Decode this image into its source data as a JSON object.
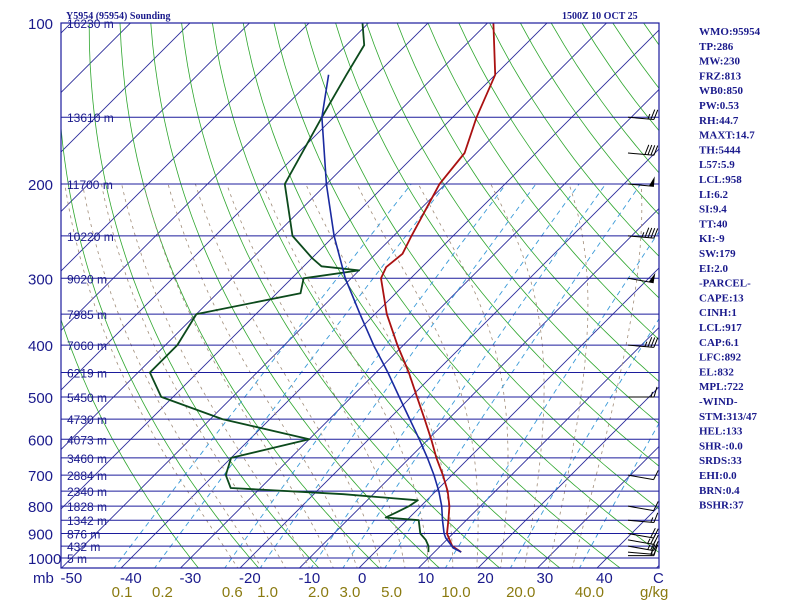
{
  "header": {
    "station": "Y5954 (95954) Sounding",
    "time": "1500Z 10 OCT 25"
  },
  "indices": [
    "WMO:95954",
    "TP:286",
    "MW:230",
    "FRZ:813",
    "WB0:850",
    "PW:0.53",
    "RH:44.7",
    "MAXT:14.7",
    "TH:5444",
    "L57:5.9",
    "LCL:958",
    "LI:6.2",
    "SI:9.4",
    "TT:40",
    "KI:-9",
    "SW:179",
    "EI:2.0",
    "-PARCEL-",
    "CAPE:13",
    "CINH:1",
    "LCL:917",
    "CAP:6.1",
    "LFC:892",
    "EL:832",
    "MPL:722",
    "-WIND-",
    "STM:313/47",
    "HEL:133",
    "SHR-:0.0",
    "SRDS:33",
    "EHI:0.0",
    "BRN:0.4",
    "BSHR:37"
  ],
  "colors": {
    "isobar": "#1c1c9c",
    "isotherm": "#2a2a9a",
    "dry_adiabat": "#2ea62e",
    "moist_adiabat": "#a08c78",
    "mixing_ratio": "#3a9ad8",
    "temperature": "#aa1111",
    "dewpoint": "#0c4a1c",
    "parcel": "#1a2aa0",
    "wind": "#000000"
  },
  "chart_data": {
    "type": "skew-t",
    "pressure_axis": {
      "range_hpa": [
        1000,
        100
      ],
      "ticks": [
        {
          "p": 100,
          "label": "100"
        },
        {
          "p": 200,
          "label": "200"
        },
        {
          "p": 300,
          "label": "300"
        },
        {
          "p": 400,
          "label": "400"
        },
        {
          "p": 500,
          "label": "500"
        },
        {
          "p": 600,
          "label": "600"
        },
        {
          "p": 700,
          "label": "700"
        },
        {
          "p": 800,
          "label": "800"
        },
        {
          "p": 900,
          "label": "900"
        },
        {
          "p": 1000,
          "label": "1000"
        }
      ],
      "unit": "mb"
    },
    "temperature_axis": {
      "unit": "C",
      "ticks": [
        {
          "t": -50,
          "label": "-50"
        },
        {
          "t": -40,
          "label": "-40"
        },
        {
          "t": -30,
          "label": "-30"
        },
        {
          "t": -20,
          "label": "-20"
        },
        {
          "t": -10,
          "label": "-10"
        },
        {
          "t": 0,
          "label": "0"
        },
        {
          "t": 10,
          "label": "10"
        },
        {
          "t": 20,
          "label": "20"
        },
        {
          "t": 30,
          "label": "30"
        },
        {
          "t": 40,
          "label": "40"
        }
      ]
    },
    "mixing_ratio_axis": {
      "unit": "g/kg",
      "ticks": [
        {
          "w": 0.1,
          "label": "0.1"
        },
        {
          "w": 0.2,
          "label": "0.2"
        },
        {
          "w": 0.6,
          "label": "0.6"
        },
        {
          "w": 1.0,
          "label": "1.0"
        },
        {
          "w": 2.0,
          "label": "2.0"
        },
        {
          "w": 3.0,
          "label": "3.0"
        },
        {
          "w": 5.0,
          "label": "5.0"
        },
        {
          "w": 10.0,
          "label": "10.0"
        },
        {
          "w": 20.0,
          "label": "20.0"
        },
        {
          "w": 40.0,
          "label": "40.0"
        }
      ]
    },
    "height_levels": [
      {
        "p": 100,
        "label": "16230 m"
      },
      {
        "p": 150,
        "label": "13610 m"
      },
      {
        "p": 200,
        "label": "11700 m"
      },
      {
        "p": 250,
        "label": "10220 m"
      },
      {
        "p": 300,
        "label": "9020 m"
      },
      {
        "p": 350,
        "label": "7985 m"
      },
      {
        "p": 400,
        "label": "7060 m"
      },
      {
        "p": 450,
        "label": "6219 m"
      },
      {
        "p": 500,
        "label": "5450 m"
      },
      {
        "p": 550,
        "label": "4730 m"
      },
      {
        "p": 600,
        "label": "4073 m"
      },
      {
        "p": 650,
        "label": "3460 m"
      },
      {
        "p": 700,
        "label": "2884 m"
      },
      {
        "p": 750,
        "label": "2340 m"
      },
      {
        "p": 800,
        "label": "1828 m"
      },
      {
        "p": 850,
        "label": "1342 m"
      },
      {
        "p": 900,
        "label": "876 m"
      },
      {
        "p": 950,
        "label": "432 m"
      },
      {
        "p": 1000,
        "label": "5 m"
      }
    ],
    "series": [
      {
        "name": "temperature",
        "points": [
          {
            "p": 975,
            "t": 14.5
          },
          {
            "p": 950,
            "t": 12.0
          },
          {
            "p": 925,
            "t": 10.5
          },
          {
            "p": 900,
            "t": 9.0
          },
          {
            "p": 850,
            "t": 7.0
          },
          {
            "p": 800,
            "t": 4.8
          },
          {
            "p": 750,
            "t": 2.0
          },
          {
            "p": 700,
            "t": -1.5
          },
          {
            "p": 650,
            "t": -5.5
          },
          {
            "p": 600,
            "t": -9.5
          },
          {
            "p": 550,
            "t": -14.0
          },
          {
            "p": 500,
            "t": -19.0
          },
          {
            "p": 450,
            "t": -24.5
          },
          {
            "p": 400,
            "t": -31.0
          },
          {
            "p": 350,
            "t": -38.0
          },
          {
            "p": 300,
            "t": -45.0
          },
          {
            "p": 286,
            "t": -46.0
          },
          {
            "p": 270,
            "t": -45.5
          },
          {
            "p": 250,
            "t": -47.0
          },
          {
            "p": 200,
            "t": -51.0
          },
          {
            "p": 175,
            "t": -52.0
          },
          {
            "p": 150,
            "t": -56.0
          },
          {
            "p": 125,
            "t": -60.0
          },
          {
            "p": 100,
            "t": -69.0
          }
        ]
      },
      {
        "name": "dewpoint",
        "points": [
          {
            "p": 975,
            "t": 9.0
          },
          {
            "p": 950,
            "t": 8.0
          },
          {
            "p": 925,
            "t": 6.5
          },
          {
            "p": 900,
            "t": 4.5
          },
          {
            "p": 850,
            "t": 2.0
          },
          {
            "p": 840,
            "t": -4.0
          },
          {
            "p": 820,
            "t": -3.0
          },
          {
            "p": 800,
            "t": -2.0
          },
          {
            "p": 780,
            "t": -1.5
          },
          {
            "p": 760,
            "t": -15.0
          },
          {
            "p": 740,
            "t": -35.0
          },
          {
            "p": 700,
            "t": -38.0
          },
          {
            "p": 650,
            "t": -40.0
          },
          {
            "p": 600,
            "t": -30.0
          },
          {
            "p": 550,
            "t": -48.0
          },
          {
            "p": 500,
            "t": -62.0
          },
          {
            "p": 450,
            "t": -68.0
          },
          {
            "p": 400,
            "t": -68.0
          },
          {
            "p": 350,
            "t": -70.0
          },
          {
            "p": 320,
            "t": -56.0
          },
          {
            "p": 300,
            "t": -58.0
          },
          {
            "p": 290,
            "t": -50.0
          },
          {
            "p": 285,
            "t": -57.0
          },
          {
            "p": 275,
            "t": -60.0
          },
          {
            "p": 250,
            "t": -67.0
          },
          {
            "p": 200,
            "t": -77.0
          },
          {
            "p": 150,
            "t": -82.0
          },
          {
            "p": 125,
            "t": -85.0
          },
          {
            "p": 110,
            "t": -87.0
          },
          {
            "p": 100,
            "t": -91.0
          }
        ]
      },
      {
        "name": "parcel",
        "points": [
          {
            "p": 975,
            "t": 14.5
          },
          {
            "p": 958,
            "t": 12.5
          },
          {
            "p": 917,
            "t": 9.5
          },
          {
            "p": 900,
            "t": 8.5
          },
          {
            "p": 850,
            "t": 6.0
          },
          {
            "p": 800,
            "t": 3.5
          },
          {
            "p": 750,
            "t": 0.5
          },
          {
            "p": 700,
            "t": -3.0
          },
          {
            "p": 650,
            "t": -7.0
          },
          {
            "p": 600,
            "t": -11.5
          },
          {
            "p": 550,
            "t": -16.5
          },
          {
            "p": 500,
            "t": -22.0
          },
          {
            "p": 450,
            "t": -28.0
          },
          {
            "p": 400,
            "t": -35.0
          },
          {
            "p": 350,
            "t": -42.5
          },
          {
            "p": 300,
            "t": -51.0
          },
          {
            "p": 250,
            "t": -60.0
          },
          {
            "p": 200,
            "t": -70.0
          },
          {
            "p": 150,
            "t": -82.0
          },
          {
            "p": 125,
            "t": -88.0
          }
        ]
      }
    ],
    "wind_barbs": [
      {
        "p": 990,
        "dir": 90,
        "kt": 15
      },
      {
        "p": 975,
        "dir": 95,
        "kt": 20
      },
      {
        "p": 950,
        "dir": 100,
        "kt": 25
      },
      {
        "p": 925,
        "dir": 100,
        "kt": 25
      },
      {
        "p": 900,
        "dir": 100,
        "kt": 20
      },
      {
        "p": 850,
        "dir": 95,
        "kt": 15
      },
      {
        "p": 800,
        "dir": 100,
        "kt": 10
      },
      {
        "p": 700,
        "dir": 100,
        "kt": 10
      },
      {
        "p": 500,
        "dir": 90,
        "kt": 15
      },
      {
        "p": 400,
        "dir": 95,
        "kt": 35
      },
      {
        "p": 300,
        "dir": 100,
        "kt": 50
      },
      {
        "p": 250,
        "dir": 95,
        "kt": 45
      },
      {
        "p": 200,
        "dir": 95,
        "kt": 50
      },
      {
        "p": 175,
        "dir": 95,
        "kt": 40
      },
      {
        "p": 150,
        "dir": 95,
        "kt": 25
      }
    ]
  }
}
